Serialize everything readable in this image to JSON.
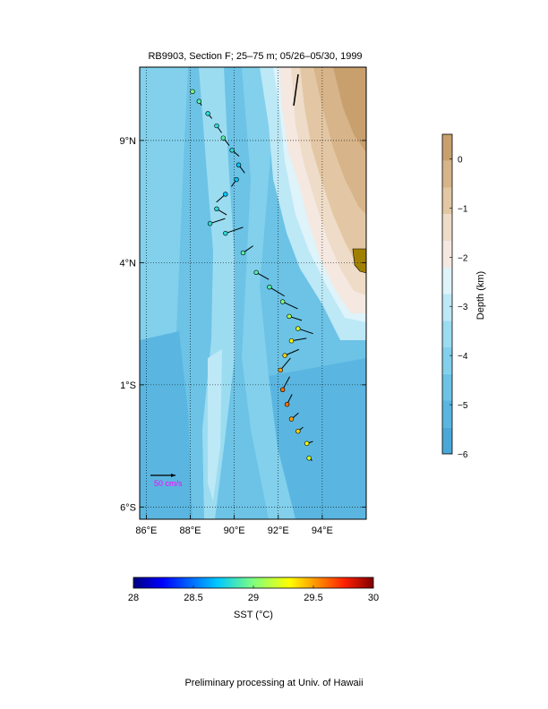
{
  "title": "RB9903, Section F; 25–75 m; 05/26–05/30, 1999",
  "footer": "Preliminary processing at Univ. of Hawaii",
  "map": {
    "lon_range": [
      85.7,
      96.0
    ],
    "lat_range": [
      -6.5,
      12.0
    ],
    "x_ticks": [
      {
        "value": 86,
        "label": "86°E"
      },
      {
        "value": 88,
        "label": "88°E"
      },
      {
        "value": 90,
        "label": "90°E"
      },
      {
        "value": 92,
        "label": "92°E"
      },
      {
        "value": 94,
        "label": "94°E"
      }
    ],
    "y_ticks": [
      {
        "value": -6,
        "label": "6°S"
      },
      {
        "value": -1,
        "label": "1°S"
      },
      {
        "value": 4,
        "label": "4°N"
      },
      {
        "value": 9,
        "label": "9°N"
      }
    ],
    "grid": "dotted"
  },
  "scale_arrow": {
    "label": "50 cm/s",
    "speed_cm_s": 50,
    "label_color": "#ff00ff"
  },
  "depth_colorbar": {
    "label": "Depth (km)",
    "range": [
      -6,
      0.5
    ],
    "ticks": [
      {
        "value": 0,
        "label": "0"
      },
      {
        "value": -1,
        "label": "−1"
      },
      {
        "value": -2,
        "label": "−2"
      },
      {
        "value": -3,
        "label": "−3"
      },
      {
        "value": -4,
        "label": "−4"
      },
      {
        "value": -5,
        "label": "−5"
      },
      {
        "value": -6,
        "label": "−6"
      }
    ],
    "colors": [
      "#4aa8d8",
      "#5ab6e0",
      "#6cc3e6",
      "#82d0ec",
      "#9cdcf1",
      "#bde8f6",
      "#def3fa",
      "#f4e8e0",
      "#eedcc8",
      "#e3c7a4",
      "#d7b489",
      "#c8a06e"
    ]
  },
  "sst_colorbar": {
    "label": "SST (°C)",
    "range": [
      28,
      30
    ],
    "ticks": [
      {
        "value": 28,
        "label": "28"
      },
      {
        "value": 28.5,
        "label": "28.5"
      },
      {
        "value": 29,
        "label": "29"
      },
      {
        "value": 29.5,
        "label": "29.5"
      },
      {
        "value": 30,
        "label": "30"
      }
    ]
  },
  "chart_data": {
    "type": "scatter",
    "title": "RB9903, Section F; 25–75 m; 05/26–05/30, 1999",
    "xlabel": "",
    "ylabel": "",
    "xlim": [
      85.7,
      96.0
    ],
    "ylim": [
      -6.5,
      12.0
    ],
    "x_unit": "longitude (°E)",
    "y_unit": "latitude (°N)",
    "color_variable": "SST (°C)",
    "series": [
      {
        "points": [
          {
            "lon": 88.1,
            "lat": 11.0,
            "sst": 29.0,
            "u": 2,
            "v": 3
          },
          {
            "lon": 88.4,
            "lat": 10.6,
            "sst": 28.9,
            "u": 5,
            "v": -8
          },
          {
            "lon": 88.8,
            "lat": 10.1,
            "sst": 28.8,
            "u": 8,
            "v": -10
          },
          {
            "lon": 89.2,
            "lat": 9.6,
            "sst": 28.8,
            "u": 10,
            "v": -14
          },
          {
            "lon": 89.5,
            "lat": 9.1,
            "sst": 28.9,
            "u": 12,
            "v": -15
          },
          {
            "lon": 89.9,
            "lat": 8.6,
            "sst": 28.8,
            "u": 14,
            "v": -12
          },
          {
            "lon": 90.2,
            "lat": 8.0,
            "sst": 28.7,
            "u": 12,
            "v": -16
          },
          {
            "lon": 90.1,
            "lat": 7.4,
            "sst": 28.7,
            "u": -10,
            "v": -14
          },
          {
            "lon": 89.6,
            "lat": 6.8,
            "sst": 28.7,
            "u": -18,
            "v": -16
          },
          {
            "lon": 89.2,
            "lat": 6.2,
            "sst": 28.8,
            "u": 20,
            "v": -12
          },
          {
            "lon": 88.9,
            "lat": 5.6,
            "sst": 28.8,
            "u": 30,
            "v": 10
          },
          {
            "lon": 89.6,
            "lat": 5.2,
            "sst": 28.8,
            "u": 35,
            "v": 12
          },
          {
            "lon": 90.4,
            "lat": 4.4,
            "sst": 28.9,
            "u": 20,
            "v": 14
          },
          {
            "lon": 91.0,
            "lat": 3.6,
            "sst": 28.9,
            "u": 25,
            "v": -14
          },
          {
            "lon": 91.6,
            "lat": 3.0,
            "sst": 28.9,
            "u": 30,
            "v": -18
          },
          {
            "lon": 92.2,
            "lat": 2.4,
            "sst": 29.0,
            "u": 30,
            "v": -14
          },
          {
            "lon": 92.5,
            "lat": 1.8,
            "sst": 29.1,
            "u": 25,
            "v": -8
          },
          {
            "lon": 92.9,
            "lat": 1.3,
            "sst": 29.2,
            "u": 30,
            "v": -10
          },
          {
            "lon": 92.6,
            "lat": 0.8,
            "sst": 29.3,
            "u": 30,
            "v": 5
          },
          {
            "lon": 92.3,
            "lat": 0.2,
            "sst": 29.4,
            "u": 28,
            "v": 12
          },
          {
            "lon": 92.1,
            "lat": -0.4,
            "sst": 29.5,
            "u": 20,
            "v": 24
          },
          {
            "lon": 92.2,
            "lat": -1.2,
            "sst": 29.6,
            "u": 14,
            "v": 26
          },
          {
            "lon": 92.4,
            "lat": -1.8,
            "sst": 29.6,
            "u": 10,
            "v": 20
          },
          {
            "lon": 92.6,
            "lat": -2.4,
            "sst": 29.5,
            "u": 14,
            "v": 12
          },
          {
            "lon": 92.9,
            "lat": -2.9,
            "sst": 29.4,
            "u": 10,
            "v": 8
          },
          {
            "lon": 93.3,
            "lat": -3.4,
            "sst": 29.3,
            "u": 12,
            "v": 4
          },
          {
            "lon": 93.4,
            "lat": -4.0,
            "sst": 29.2,
            "u": 6,
            "v": -5
          }
        ]
      }
    ],
    "legend": "none"
  }
}
